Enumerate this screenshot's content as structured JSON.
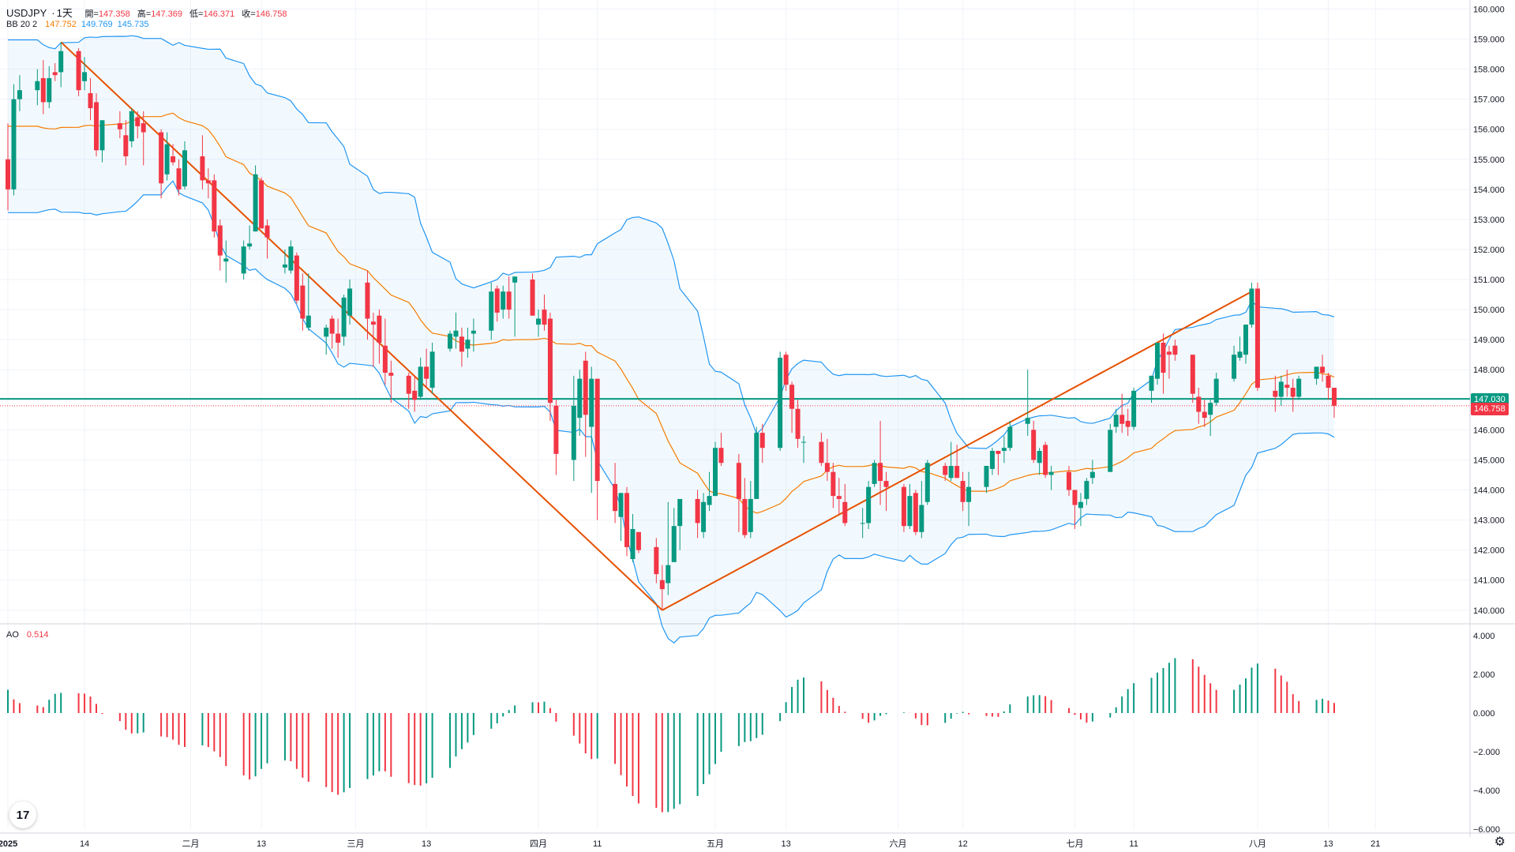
{
  "header": {
    "symbol": "USDJPY",
    "sep": "·",
    "interval": "1天",
    "open_label": "開=",
    "open": "147.358",
    "high_label": "高=",
    "high": "147.369",
    "low_label": "低=",
    "low": "146.371",
    "close_label": "收=",
    "close": "146.758"
  },
  "bb": {
    "name": "BB 20 2",
    "basis": "147.752",
    "upper": "149.769",
    "lower": "145.735"
  },
  "ao": {
    "name": "AO",
    "value": "0.514"
  },
  "badges": {
    "hline": "147.030",
    "last": "146.758"
  },
  "colors": {
    "up": "#089981",
    "down": "#f23645",
    "basis": "#f57c00",
    "band": "#2196f3",
    "trend": "#e65100",
    "hline": "#089981"
  },
  "chart_data": {
    "type": "candlestick",
    "symbol": "USDJPY",
    "interval": "1D",
    "y_ticks": [
      "160.000",
      "159.000",
      "158.000",
      "157.000",
      "156.000",
      "155.000",
      "154.000",
      "153.000",
      "152.000",
      "151.000",
      "150.000",
      "149.000",
      "148.000",
      "147.000",
      "146.000",
      "145.000",
      "144.000",
      "143.000",
      "142.000",
      "141.000",
      "140.000"
    ],
    "ylim": [
      139.6,
      160.3
    ],
    "x_ticks": [
      "2025",
      "14",
      "二月",
      "13",
      "三月",
      "13",
      "四月",
      "11",
      "五月",
      "13",
      "六月",
      "12",
      "七月",
      "11",
      "八月",
      "13",
      "21"
    ],
    "horizontal_line": 147.03,
    "trend_lines": [
      {
        "from": [
          "2025-01-10",
          158.9
        ],
        "to": [
          "2025-04-22",
          140.0
        ]
      },
      {
        "from": [
          "2025-04-22",
          140.0
        ],
        "to": [
          "2025-07-31",
          150.6
        ]
      }
    ],
    "candles": [
      [
        "2025-01-01",
        155.0,
        156.2,
        153.3,
        154.0
      ],
      [
        "2025-01-02",
        154.0,
        157.5,
        153.8,
        157.0
      ],
      [
        "2025-01-03",
        157.0,
        157.8,
        156.6,
        157.3
      ],
      [
        "2025-01-06",
        157.3,
        158.0,
        156.8,
        157.6
      ],
      [
        "2025-01-07",
        157.7,
        158.3,
        156.5,
        156.9
      ],
      [
        "2025-01-08",
        156.9,
        158.1,
        156.7,
        157.7
      ],
      [
        "2025-01-09",
        157.9,
        158.2,
        157.6,
        157.8
      ],
      [
        "2025-01-10",
        157.9,
        158.9,
        157.4,
        158.6
      ],
      [
        "2025-01-13",
        158.6,
        158.7,
        157.1,
        157.3
      ],
      [
        "2025-01-14",
        157.6,
        158.4,
        157.3,
        157.9
      ],
      [
        "2025-01-15",
        157.2,
        157.7,
        156.3,
        156.7
      ],
      [
        "2025-01-16",
        156.9,
        157.2,
        155.1,
        155.3
      ],
      [
        "2025-01-17",
        155.3,
        156.3,
        154.9,
        156.3
      ],
      [
        "2025-01-20",
        156.2,
        156.6,
        155.7,
        156.0
      ],
      [
        "2025-01-21",
        155.8,
        156.3,
        154.8,
        155.1
      ],
      [
        "2025-01-22",
        155.6,
        156.7,
        155.4,
        156.6
      ],
      [
        "2025-01-23",
        156.4,
        156.6,
        155.7,
        156.1
      ],
      [
        "2025-01-24",
        156.2,
        156.6,
        154.8,
        155.9
      ],
      [
        "2025-01-27",
        155.9,
        156.0,
        153.7,
        154.2
      ],
      [
        "2025-01-28",
        154.5,
        155.9,
        154.3,
        155.5
      ],
      [
        "2025-01-29",
        155.1,
        155.5,
        154.8,
        154.9
      ],
      [
        "2025-01-30",
        154.7,
        155.0,
        153.8,
        154.0
      ],
      [
        "2025-01-31",
        154.1,
        155.6,
        154.0,
        155.3
      ],
      [
        "2025-02-03",
        155.1,
        155.8,
        154.0,
        154.3
      ],
      [
        "2025-02-04",
        154.3,
        154.7,
        153.7,
        154.2
      ],
      [
        "2025-02-05",
        154.3,
        154.5,
        152.4,
        152.6
      ],
      [
        "2025-02-06",
        152.8,
        153.0,
        151.3,
        151.8
      ],
      [
        "2025-02-07",
        151.6,
        152.3,
        150.9,
        151.7
      ],
      [
        "2025-02-10",
        151.2,
        152.3,
        151.0,
        152.1
      ],
      [
        "2025-02-11",
        152.1,
        152.8,
        152.0,
        152.2
      ],
      [
        "2025-02-12",
        152.6,
        154.8,
        152.6,
        154.5
      ],
      [
        "2025-02-13",
        154.3,
        154.4,
        152.7,
        152.7
      ],
      [
        "2025-02-14",
        152.8,
        153.0,
        151.7,
        152.4
      ],
      [
        "2025-02-17",
        151.4,
        152.0,
        151.2,
        151.5
      ],
      [
        "2025-02-18",
        151.3,
        152.3,
        151.2,
        152.1
      ],
      [
        "2025-02-19",
        151.8,
        151.9,
        150.2,
        150.3
      ],
      [
        "2025-02-20",
        150.8,
        151.2,
        149.3,
        149.7
      ],
      [
        "2025-02-21",
        149.4,
        151.2,
        149.3,
        149.8
      ],
      [
        "2025-02-24",
        149.1,
        149.5,
        148.5,
        149.4
      ],
      [
        "2025-02-25",
        149.7,
        149.8,
        148.7,
        149.2
      ],
      [
        "2025-02-26",
        149.2,
        149.7,
        148.4,
        148.9
      ],
      [
        "2025-02-27",
        149.1,
        150.5,
        148.8,
        150.4
      ],
      [
        "2025-02-28",
        149.8,
        151.0,
        149.5,
        150.7
      ],
      [
        "2025-03-03",
        150.9,
        151.3,
        149.0,
        149.7
      ],
      [
        "2025-03-04",
        149.6,
        149.9,
        148.1,
        149.5
      ],
      [
        "2025-03-05",
        149.8,
        150.0,
        148.2,
        148.9
      ],
      [
        "2025-03-06",
        148.8,
        149.7,
        147.5,
        147.9
      ],
      [
        "2025-03-07",
        147.9,
        148.3,
        146.9,
        147.8
      ],
      [
        "2025-03-10",
        147.8,
        147.9,
        146.7,
        147.2
      ],
      [
        "2025-03-11",
        147.3,
        147.8,
        146.6,
        147.0
      ],
      [
        "2025-03-12",
        147.1,
        148.4,
        147.0,
        148.1
      ],
      [
        "2025-03-13",
        148.1,
        148.7,
        147.4,
        147.7
      ],
      [
        "2025-03-14",
        147.4,
        148.9,
        147.2,
        148.6
      ],
      [
        "2025-03-17",
        148.7,
        149.3,
        148.6,
        149.2
      ],
      [
        "2025-03-18",
        149.1,
        149.9,
        148.7,
        149.3
      ],
      [
        "2025-03-19",
        149.1,
        149.4,
        148.1,
        148.6
      ],
      [
        "2025-03-20",
        148.7,
        149.4,
        148.4,
        149.0
      ],
      [
        "2025-03-21",
        149.2,
        149.7,
        148.6,
        149.3
      ],
      [
        "2025-03-24",
        149.3,
        150.9,
        149.0,
        150.6
      ],
      [
        "2025-03-25",
        150.7,
        150.8,
        149.6,
        149.9
      ],
      [
        "2025-03-26",
        150.0,
        150.8,
        149.7,
        150.6
      ],
      [
        "2025-03-27",
        150.6,
        151.1,
        149.7,
        150.0
      ],
      [
        "2025-03-28",
        150.9,
        151.1,
        149.1,
        151.1
      ],
      [
        "2025-03-31",
        151.0,
        151.2,
        149.8,
        149.8
      ],
      [
        "2025-04-01",
        149.5,
        150.0,
        149.1,
        149.7
      ],
      [
        "2025-04-02",
        150.0,
        150.5,
        149.3,
        149.5
      ],
      [
        "2025-04-03",
        149.7,
        149.9,
        146.3,
        146.9
      ],
      [
        "2025-04-04",
        146.8,
        147.0,
        144.5,
        145.2
      ],
      [
        "2025-04-07",
        145.0,
        147.8,
        144.3,
        146.8
      ],
      [
        "2025-04-08",
        146.4,
        148.0,
        145.8,
        147.7
      ],
      [
        "2025-04-09",
        148.3,
        148.6,
        145.1,
        146.5
      ],
      [
        "2025-04-10",
        146.1,
        148.1,
        143.9,
        147.7
      ],
      [
        "2025-04-11",
        147.7,
        147.7,
        143.0,
        144.3
      ],
      [
        "2025-04-14",
        144.2,
        144.9,
        142.9,
        143.3
      ],
      [
        "2025-04-15",
        143.1,
        143.9,
        142.3,
        143.9
      ],
      [
        "2025-04-16",
        143.9,
        144.1,
        141.8,
        142.1
      ],
      [
        "2025-04-17",
        141.7,
        143.2,
        141.6,
        142.7
      ],
      [
        "2025-04-18",
        142.6,
        142.6,
        141.9,
        142.0
      ],
      [
        "2025-04-21",
        142.1,
        142.4,
        140.9,
        141.2
      ],
      [
        "2025-04-22",
        141.0,
        141.5,
        140.0,
        140.7
      ],
      [
        "2025-04-23",
        140.9,
        143.6,
        140.5,
        141.5
      ],
      [
        "2025-04-24",
        141.6,
        143.4,
        141.6,
        142.8
      ],
      [
        "2025-04-25",
        142.8,
        143.5,
        142.0,
        143.7
      ],
      [
        "2025-04-28",
        143.7,
        144.0,
        142.4,
        142.9
      ],
      [
        "2025-04-29",
        142.6,
        143.9,
        142.4,
        143.6
      ],
      [
        "2025-04-30",
        143.5,
        144.6,
        143.3,
        143.8
      ],
      [
        "2025-05-01",
        143.8,
        145.6,
        143.8,
        145.4
      ],
      [
        "2025-05-02",
        145.4,
        145.9,
        144.8,
        144.9
      ],
      [
        "2025-05-05",
        144.9,
        145.2,
        142.6,
        143.7
      ],
      [
        "2025-05-06",
        143.7,
        144.4,
        142.4,
        142.5
      ],
      [
        "2025-05-07",
        142.6,
        144.3,
        142.4,
        143.7
      ],
      [
        "2025-05-08",
        143.7,
        146.1,
        143.7,
        145.9
      ],
      [
        "2025-05-09",
        145.9,
        146.2,
        144.9,
        145.4
      ],
      [
        "2025-05-12",
        145.4,
        148.6,
        145.3,
        148.4
      ],
      [
        "2025-05-13",
        148.5,
        148.6,
        147.3,
        147.5
      ],
      [
        "2025-05-14",
        147.5,
        147.6,
        145.9,
        146.7
      ],
      [
        "2025-05-15",
        146.7,
        147.0,
        145.4,
        145.7
      ],
      [
        "2025-05-16",
        145.6,
        145.8,
        144.9,
        145.6
      ],
      [
        "2025-05-19",
        145.6,
        145.9,
        144.8,
        144.9
      ],
      [
        "2025-05-20",
        144.9,
        145.7,
        144.3,
        144.6
      ],
      [
        "2025-05-21",
        144.6,
        144.9,
        143.4,
        143.8
      ],
      [
        "2025-05-22",
        143.8,
        144.4,
        143.2,
        143.7
      ],
      [
        "2025-05-23",
        143.6,
        144.2,
        142.8,
        142.9
      ],
      [
        "2025-05-26",
        142.9,
        143.4,
        142.4,
        142.9
      ],
      [
        "2025-05-27",
        142.9,
        144.3,
        142.7,
        144.1
      ],
      [
        "2025-05-28",
        144.2,
        145.0,
        144.1,
        144.9
      ],
      [
        "2025-05-29",
        144.9,
        146.3,
        143.5,
        144.3
      ],
      [
        "2025-05-30",
        144.3,
        144.6,
        143.3,
        144.1
      ],
      [
        "2025-06-02",
        144.1,
        144.2,
        142.6,
        142.8
      ],
      [
        "2025-06-03",
        142.8,
        144.2,
        142.7,
        143.8
      ],
      [
        "2025-06-04",
        143.9,
        144.0,
        142.5,
        142.6
      ],
      [
        "2025-06-05",
        142.6,
        144.3,
        142.4,
        143.5
      ],
      [
        "2025-06-06",
        143.6,
        145.0,
        143.5,
        144.9
      ],
      [
        "2025-06-09",
        144.8,
        144.9,
        144.3,
        144.5
      ],
      [
        "2025-06-10",
        144.4,
        145.6,
        144.3,
        144.8
      ],
      [
        "2025-06-11",
        144.8,
        145.5,
        144.4,
        144.4
      ],
      [
        "2025-06-12",
        144.3,
        144.6,
        143.3,
        143.6
      ],
      [
        "2025-06-13",
        143.6,
        144.6,
        142.8,
        144.1
      ],
      [
        "2025-06-16",
        144.1,
        144.8,
        143.9,
        144.8
      ],
      [
        "2025-06-17",
        144.7,
        145.4,
        144.5,
        145.3
      ],
      [
        "2025-06-18",
        145.3,
        145.3,
        144.5,
        145.2
      ],
      [
        "2025-06-19",
        145.3,
        145.8,
        144.9,
        145.4
      ],
      [
        "2025-06-20",
        145.4,
        146.3,
        145.3,
        146.1
      ],
      [
        "2025-06-23",
        146.2,
        148.0,
        145.8,
        146.4
      ],
      [
        "2025-06-24",
        146.0,
        146.3,
        144.9,
        145.0
      ],
      [
        "2025-06-25",
        144.9,
        145.4,
        144.5,
        145.3
      ],
      [
        "2025-06-26",
        145.5,
        145.6,
        144.4,
        144.5
      ],
      [
        "2025-06-27",
        144.5,
        144.8,
        144.0,
        144.6
      ],
      [
        "2025-06-30",
        144.6,
        144.8,
        143.8,
        144.0
      ],
      [
        "2025-07-01",
        144.0,
        144.0,
        142.7,
        143.5
      ],
      [
        "2025-07-02",
        143.4,
        143.9,
        142.8,
        143.6
      ],
      [
        "2025-07-03",
        143.7,
        144.4,
        143.5,
        144.3
      ],
      [
        "2025-07-04",
        144.4,
        145.0,
        144.2,
        144.6
      ],
      [
        "2025-07-07",
        144.6,
        146.2,
        144.6,
        146.0
      ],
      [
        "2025-07-08",
        146.1,
        146.7,
        145.9,
        146.5
      ],
      [
        "2025-07-09",
        146.5,
        147.2,
        145.9,
        146.2
      ],
      [
        "2025-07-10",
        146.3,
        146.7,
        145.8,
        146.1
      ],
      [
        "2025-07-11",
        146.1,
        147.4,
        146.0,
        147.3
      ],
      [
        "2025-07-14",
        147.3,
        147.8,
        146.9,
        147.8
      ],
      [
        "2025-07-15",
        147.7,
        148.9,
        147.5,
        148.9
      ],
      [
        "2025-07-16",
        148.9,
        149.2,
        147.2,
        147.9
      ],
      [
        "2025-07-17",
        148.6,
        148.8,
        147.7,
        148.5
      ],
      [
        "2025-07-18",
        148.8,
        149.0,
        148.3,
        148.5
      ],
      [
        "2025-07-21",
        148.5,
        148.5,
        146.9,
        147.2
      ],
      [
        "2025-07-22",
        147.1,
        147.4,
        146.2,
        146.6
      ],
      [
        "2025-07-23",
        146.6,
        147.0,
        146.1,
        146.4
      ],
      [
        "2025-07-24",
        146.5,
        147.0,
        145.8,
        146.9
      ],
      [
        "2025-07-25",
        146.9,
        147.9,
        146.8,
        147.7
      ],
      [
        "2025-07-28",
        147.7,
        148.8,
        147.6,
        148.5
      ],
      [
        "2025-07-29",
        148.4,
        149.1,
        148.3,
        148.6
      ],
      [
        "2025-07-30",
        148.5,
        149.5,
        148.2,
        149.5
      ],
      [
        "2025-07-31",
        149.5,
        150.9,
        149.4,
        150.7
      ],
      [
        "2025-08-01",
        150.7,
        150.9,
        147.3,
        147.4
      ],
      [
        "2025-08-04",
        147.3,
        147.8,
        146.6,
        147.1
      ],
      [
        "2025-08-05",
        147.1,
        147.8,
        146.8,
        147.6
      ],
      [
        "2025-08-06",
        147.5,
        148.0,
        147.1,
        147.4
      ],
      [
        "2025-08-07",
        147.4,
        147.7,
        146.6,
        147.1
      ],
      [
        "2025-08-08",
        147.1,
        147.8,
        147.0,
        147.7
      ],
      [
        "2025-08-11",
        147.7,
        148.1,
        147.5,
        148.1
      ],
      [
        "2025-08-12",
        148.1,
        148.5,
        147.6,
        147.9
      ],
      [
        "2025-08-13",
        147.8,
        147.9,
        147.0,
        147.4
      ],
      [
        "2025-08-14",
        147.4,
        147.4,
        146.4,
        146.8
      ]
    ],
    "bollinger": {
      "period": 20,
      "mult": 2,
      "basis": 147.752,
      "upper": 149.769,
      "lower": 145.735
    },
    "ao": {
      "ylim": [
        -6,
        4
      ],
      "y_ticks": [
        "4.000",
        "2.000",
        "0.000",
        "−2.000",
        "−4.000",
        "−6.000"
      ],
      "last": 0.514
    }
  }
}
